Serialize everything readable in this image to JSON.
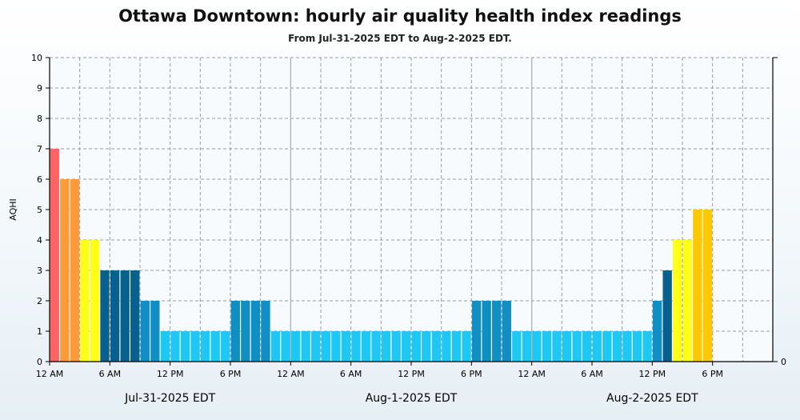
{
  "chart_data": {
    "type": "bar",
    "title": "Ottawa Downtown: hourly air quality health index readings",
    "subtitle": "From Jul-31-2025 EDT to Aug-2-2025 EDT.",
    "ylabel": "AQHI",
    "ylim": [
      0,
      10
    ],
    "yticks": [
      0,
      1,
      2,
      3,
      4,
      5,
      6,
      7,
      8,
      9,
      10
    ],
    "right_axis_ticks": [
      "0"
    ],
    "x_tick_labels": [
      "12 AM",
      "6 AM",
      "12 PM",
      "6 PM",
      "12 AM",
      "6 AM",
      "12 PM",
      "6 PM",
      "12 AM",
      "6 AM",
      "12 PM",
      "6 PM"
    ],
    "x_axis_hours": 72,
    "date_labels": [
      {
        "label": "Jul-31-2025 EDT",
        "day_index": 0
      },
      {
        "label": "Aug-1-2025 EDT",
        "day_index": 1
      },
      {
        "label": "Aug-2-2025 EDT",
        "day_index": 2
      }
    ],
    "grid": true,
    "hourly_values": [
      7,
      6,
      6,
      4,
      4,
      3,
      3,
      3,
      3,
      2,
      2,
      1,
      1,
      1,
      1,
      1,
      1,
      1,
      2,
      2,
      2,
      2,
      1,
      1,
      1,
      1,
      1,
      1,
      1,
      1,
      1,
      1,
      1,
      1,
      1,
      1,
      1,
      1,
      1,
      1,
      1,
      1,
      2,
      2,
      2,
      2,
      1,
      1,
      1,
      1,
      1,
      1,
      1,
      1,
      1,
      1,
      1,
      1,
      1,
      1,
      2,
      3,
      4,
      4,
      5,
      5
    ],
    "color_scale": {
      "1": "#1ec8f4",
      "2": "#0f8fc4",
      "3": "#08608f",
      "4": "#ffff1a",
      "5": "#ffc800",
      "6": "#ff9a3a",
      "7": "#ff6464"
    }
  }
}
